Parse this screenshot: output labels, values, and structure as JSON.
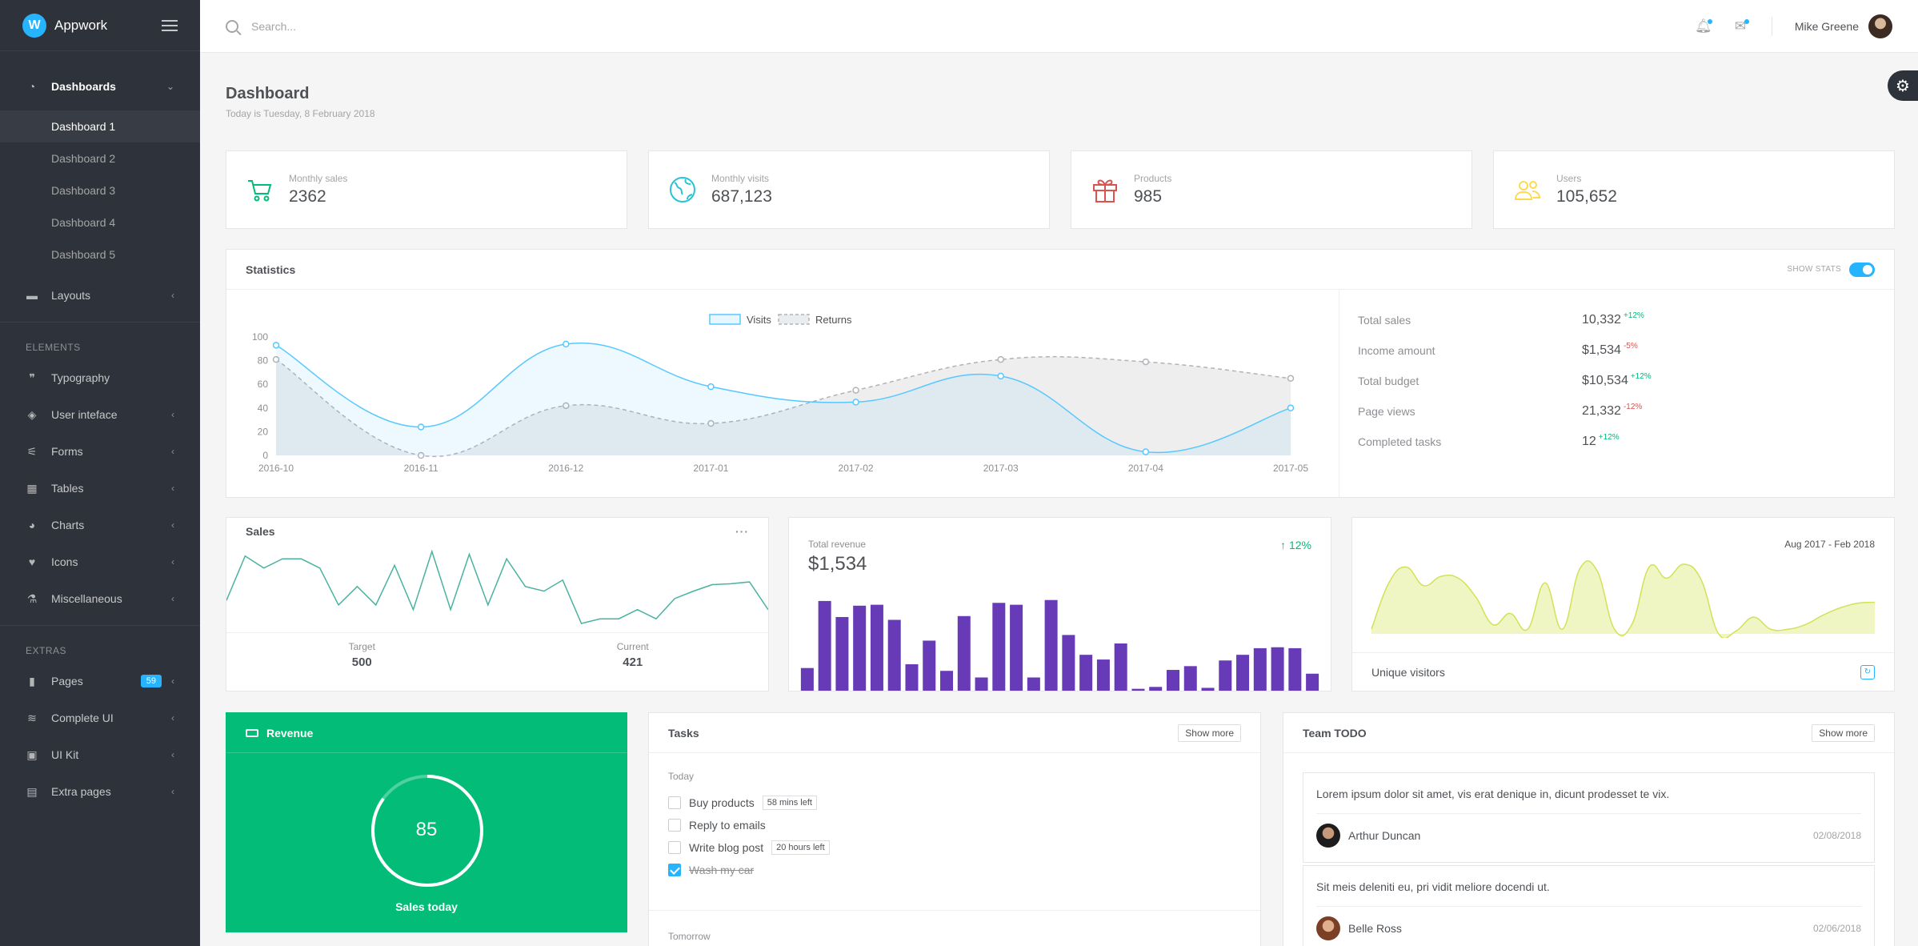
{
  "app": {
    "name": "Appwork",
    "logo_letter": "W"
  },
  "sidebar": {
    "dashboards": {
      "label": "Dashboards",
      "items": [
        "Dashboard 1",
        "Dashboard 2",
        "Dashboard 3",
        "Dashboard 4",
        "Dashboard 5"
      ]
    },
    "layouts": "Layouts",
    "elements_header": "ELEMENTS",
    "elements": [
      "Typography",
      "User inteface",
      "Forms",
      "Tables",
      "Charts",
      "Icons",
      "Miscellaneous"
    ],
    "extras_header": "EXTRAS",
    "extras": [
      "Pages",
      "Complete UI",
      "UI Kit",
      "Extra pages"
    ],
    "pages_badge": "59"
  },
  "topbar": {
    "search_placeholder": "Search...",
    "user_name": "Mike Greene"
  },
  "page": {
    "title": "Dashboard",
    "subtitle": "Today is Tuesday, 8 February 2018"
  },
  "stats": [
    {
      "label": "Monthly sales",
      "value": "2362",
      "icon": "cart-icon",
      "color": "#02bc77"
    },
    {
      "label": "Monthly visits",
      "value": "687,123",
      "icon": "globe-icon",
      "color": "#28c3d7"
    },
    {
      "label": "Products",
      "value": "985",
      "icon": "gift-icon",
      "color": "#d9534f"
    },
    {
      "label": "Users",
      "value": "105,652",
      "icon": "users-icon",
      "color": "#ffd950"
    }
  ],
  "statistics": {
    "title": "Statistics",
    "toggle_label": "SHOW STATS",
    "legend": [
      "Visits",
      "Returns"
    ],
    "totals": [
      {
        "label": "Total sales",
        "value": "10,332",
        "change": "+12%",
        "dir": "up"
      },
      {
        "label": "Income amount",
        "value": "$1,534",
        "change": "-5%",
        "dir": "down"
      },
      {
        "label": "Total budget",
        "value": "$10,534",
        "change": "+12%",
        "dir": "up"
      },
      {
        "label": "Page views",
        "value": "21,332",
        "change": "-12%",
        "dir": "down"
      },
      {
        "label": "Completed tasks",
        "value": "12",
        "change": "+12%",
        "dir": "up"
      }
    ]
  },
  "chart_data": [
    {
      "type": "line",
      "x": [
        "2016-10",
        "2016-11",
        "2016-12",
        "2017-01",
        "2017-02",
        "2017-03",
        "2017-04",
        "2017-05"
      ],
      "series": [
        {
          "name": "Visits",
          "values": [
            93,
            24,
            94,
            58,
            45,
            67,
            3,
            40
          ],
          "color": "#56c8ff"
        },
        {
          "name": "Returns",
          "values": [
            81,
            0,
            42,
            27,
            55,
            81,
            79,
            65
          ],
          "color": "#b0b3b8"
        }
      ],
      "yticks": [
        0,
        20,
        40,
        60,
        80,
        100
      ],
      "ylim": [
        0,
        100
      ]
    },
    {
      "type": "line",
      "title": "Sales",
      "values": [
        10,
        58,
        45,
        55,
        55,
        45,
        5,
        25,
        5,
        48,
        0,
        63,
        0,
        60,
        5,
        55,
        25,
        20,
        32,
        -15,
        -10,
        -10,
        0,
        -10,
        12,
        20,
        27,
        28,
        30,
        0
      ],
      "color": "#4ab2a0"
    },
    {
      "type": "bar",
      "values": [
        24,
        95,
        78,
        90,
        91,
        75,
        28,
        53,
        21,
        79,
        14,
        93,
        91,
        14,
        96,
        59,
        38,
        33,
        50,
        2,
        4,
        22,
        26,
        3,
        32,
        38,
        45,
        46,
        45,
        18
      ],
      "color": "#673ab7",
      "ylim": [
        0,
        100
      ]
    },
    {
      "type": "area",
      "values": [
        5,
        55,
        72,
        52,
        62,
        60,
        40,
        10,
        22,
        5,
        55,
        5,
        70,
        68,
        5,
        10,
        72,
        60,
        75,
        58,
        0,
        3,
        18,
        5,
        5,
        10,
        20,
        28,
        33,
        34
      ],
      "color": "#d4e157"
    }
  ],
  "sales_card": {
    "title": "Sales",
    "target_label": "Target",
    "target_value": "500",
    "current_label": "Current",
    "current_value": "421"
  },
  "revenue_card": {
    "label": "Total revenue",
    "value": "$1,534",
    "change": "12%"
  },
  "visitors_card": {
    "range": "Aug 2017 - Feb 2018",
    "title": "Unique visitors"
  },
  "revenue_green": {
    "title": "Revenue",
    "value": "85",
    "caption": "Sales today",
    "progress": 0.85
  },
  "tasks": {
    "title": "Tasks",
    "show_more": "Show more",
    "today_label": "Today",
    "items": [
      {
        "label": "Buy products",
        "tag": "58 mins left",
        "done": false
      },
      {
        "label": "Reply to emails",
        "tag": "",
        "done": false
      },
      {
        "label": "Write blog post",
        "tag": "20 hours left",
        "done": false
      },
      {
        "label": "Wash my car",
        "tag": "",
        "done": true
      }
    ],
    "tomorrow_label": "Tomorrow"
  },
  "team_todo": {
    "title": "Team TODO",
    "show_more": "Show more",
    "items": [
      {
        "text": "Lorem ipsum dolor sit amet, vis erat denique in, dicunt prodesset te vix.",
        "author": "Arthur Duncan",
        "date": "02/08/2018"
      },
      {
        "text": "Sit meis deleniti eu, pri vidit meliore docendi ut.",
        "author": "Belle Ross",
        "date": "02/06/2018"
      }
    ]
  }
}
